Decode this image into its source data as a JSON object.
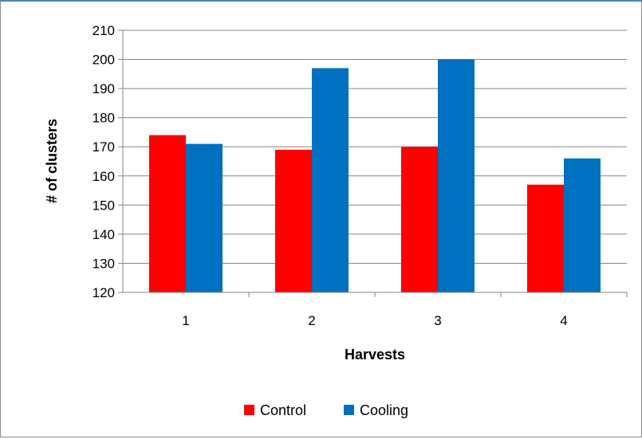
{
  "chart_data": {
    "type": "bar",
    "categories": [
      "1",
      "2",
      "3",
      "4"
    ],
    "series": [
      {
        "name": "Control",
        "color": "#ff0000",
        "values": [
          174,
          169,
          170,
          157
        ]
      },
      {
        "name": "Cooling",
        "color": "#0070c0",
        "values": [
          171,
          197,
          200,
          166
        ]
      }
    ],
    "xlabel": "Harvests",
    "ylabel": "# of clusters",
    "ylim": [
      120,
      210
    ],
    "yticks": [
      "120",
      "130",
      "140",
      "150",
      "160",
      "170",
      "180",
      "190",
      "200",
      "210"
    ],
    "grid": true,
    "legend_position": "bottom"
  }
}
